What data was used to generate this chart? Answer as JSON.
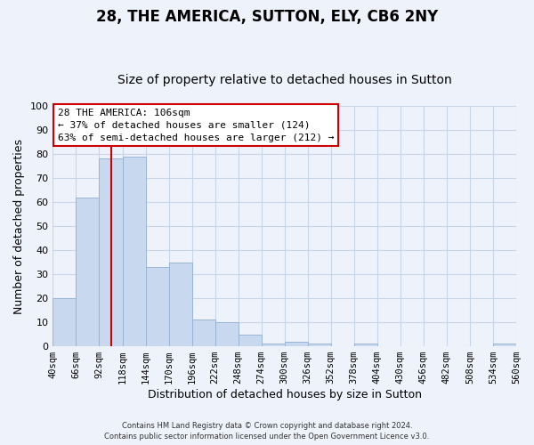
{
  "title": "28, THE AMERICA, SUTTON, ELY, CB6 2NY",
  "subtitle": "Size of property relative to detached houses in Sutton",
  "xlabel": "Distribution of detached houses by size in Sutton",
  "ylabel": "Number of detached properties",
  "footer_line1": "Contains HM Land Registry data © Crown copyright and database right 2024.",
  "footer_line2": "Contains public sector information licensed under the Open Government Licence v3.0.",
  "bar_edges": [
    40,
    66,
    92,
    118,
    144,
    170,
    196,
    222,
    248,
    274,
    300,
    326,
    352,
    378,
    404,
    430,
    456,
    482,
    508,
    534,
    560
  ],
  "bar_heights": [
    20,
    62,
    78,
    79,
    33,
    35,
    11,
    10,
    5,
    1,
    2,
    1,
    0,
    1,
    0,
    0,
    0,
    0,
    0,
    1
  ],
  "bar_color": "#c8d8ee",
  "bar_edgecolor": "#9ab4d4",
  "vline_x": 106,
  "vline_color": "#cc0000",
  "annotation_text_line1": "28 THE AMERICA: 106sqm",
  "annotation_text_line2": "← 37% of detached houses are smaller (124)",
  "annotation_text_line3": "63% of semi-detached houses are larger (212) →",
  "annotation_box_color": "#cc0000",
  "annotation_fill_color": "#ffffff",
  "ylim": [
    0,
    100
  ],
  "xlim": [
    40,
    560
  ],
  "tick_labels": [
    "40sqm",
    "66sqm",
    "92sqm",
    "118sqm",
    "144sqm",
    "170sqm",
    "196sqm",
    "222sqm",
    "248sqm",
    "274sqm",
    "300sqm",
    "326sqm",
    "352sqm",
    "378sqm",
    "404sqm",
    "430sqm",
    "456sqm",
    "482sqm",
    "508sqm",
    "534sqm",
    "560sqm"
  ],
  "background_color": "#eef2fb",
  "grid_color": "#c8d4e8",
  "title_fontsize": 12,
  "subtitle_fontsize": 10,
  "axis_label_fontsize": 9,
  "tick_fontsize": 7.5,
  "annotation_fontsize": 8,
  "footer_fontsize": 6
}
